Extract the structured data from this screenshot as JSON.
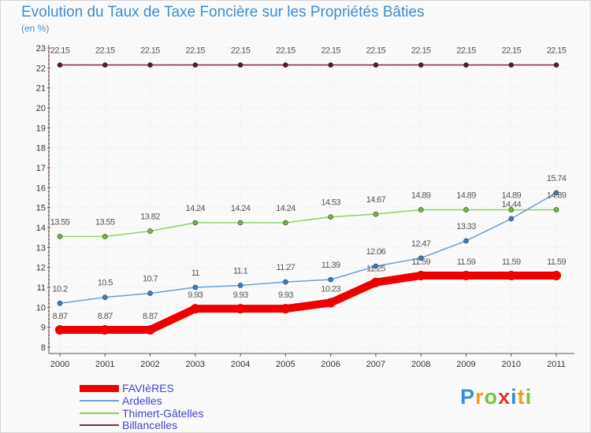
{
  "title": "Evolution du Taux de Taxe Foncière sur les Propriétés Bâties",
  "subtitle": "(en %)",
  "brand": {
    "letters": [
      "P",
      "r",
      "o",
      "x",
      "i",
      "t",
      "i"
    ],
    "colors": [
      "#3a8fd2",
      "#f39b1c",
      "#7cc142",
      "#e8332a",
      "#3a8fd2",
      "#f39b1c",
      "#7cc142"
    ]
  },
  "chart_data": {
    "type": "line",
    "title": "Evolution du Taux de Taxe Foncière sur les Propriétés Bâties",
    "ylabel": "(en %)",
    "xlabel": "",
    "ylim": [
      8,
      23
    ],
    "yticks": [
      "8",
      "9",
      "10",
      "11",
      "12",
      "13",
      "14",
      "15",
      "16",
      "17",
      "18",
      "19",
      "20",
      "21",
      "22",
      "23"
    ],
    "categories": [
      "2000",
      "2001",
      "2002",
      "2003",
      "2004",
      "2005",
      "2006",
      "2007",
      "2008",
      "2009",
      "2010",
      "2011"
    ],
    "series": [
      {
        "name": "Billancelles",
        "color": "#7a2f3a",
        "dot": "#5a1a24",
        "width": 1.5,
        "label_offset": -15,
        "values": [
          22.15,
          22.15,
          22.15,
          22.15,
          22.15,
          22.15,
          22.15,
          22.15,
          22.15,
          22.15,
          22.15,
          22.15
        ],
        "labels": [
          "22.15",
          "22.15",
          "22.15",
          "22.15",
          "22.15",
          "22.15",
          "22.15",
          "22.15",
          "22.15",
          "22.15",
          "22.15",
          "22.15"
        ]
      },
      {
        "name": "Thimert-Gâtelles",
        "color": "#8fd160",
        "dot": "#6cbf3a",
        "width": 1.5,
        "label_offset": -15,
        "values": [
          13.55,
          13.55,
          13.82,
          14.24,
          14.24,
          14.24,
          14.53,
          14.67,
          14.89,
          14.89,
          14.89,
          14.89
        ],
        "labels": [
          "13.55",
          "13.55",
          "13.82",
          "14.24",
          "14.24",
          "14.24",
          "14.53",
          "14.67",
          "14.89",
          "14.89",
          "14.89",
          "14.89"
        ]
      },
      {
        "name": "Ardelles",
        "color": "#6a9fd4",
        "dot": "#3a7fc2",
        "width": 1.5,
        "label_offset": -15,
        "values": [
          10.2,
          10.5,
          10.7,
          11,
          11.1,
          11.27,
          11.39,
          12.06,
          12.47,
          13.33,
          14.44,
          15.74
        ],
        "labels": [
          "10.2",
          "10.5",
          "10.7",
          "11",
          "11.1",
          "11.27",
          "11.39",
          "12.06",
          "12.47",
          "13.33",
          "14.44",
          "15.74"
        ]
      },
      {
        "name": "FAVIèRES",
        "color": "#ee0000",
        "dot": "#ee0000",
        "width": 10,
        "label_offset": -14,
        "values": [
          8.87,
          8.87,
          8.87,
          9.93,
          9.93,
          9.93,
          10.23,
          11.25,
          11.59,
          11.59,
          11.59,
          11.59
        ],
        "labels": [
          "8.87",
          "8.87",
          "8.87",
          "9.93",
          "9.93",
          "9.93",
          "10.23",
          "11.25",
          "11.59",
          "11.59",
          "11.59",
          "11.59"
        ]
      }
    ],
    "legend": [
      {
        "name": "FAVIèRES",
        "color": "#ee0000",
        "thickness": 9
      },
      {
        "name": "Ardelles",
        "color": "#6a9fd4",
        "thickness": 2
      },
      {
        "name": "Thimert-Gâtelles",
        "color": "#8fd160",
        "thickness": 2
      },
      {
        "name": "Billancelles",
        "color": "#7a2f3a",
        "thickness": 2
      }
    ]
  }
}
